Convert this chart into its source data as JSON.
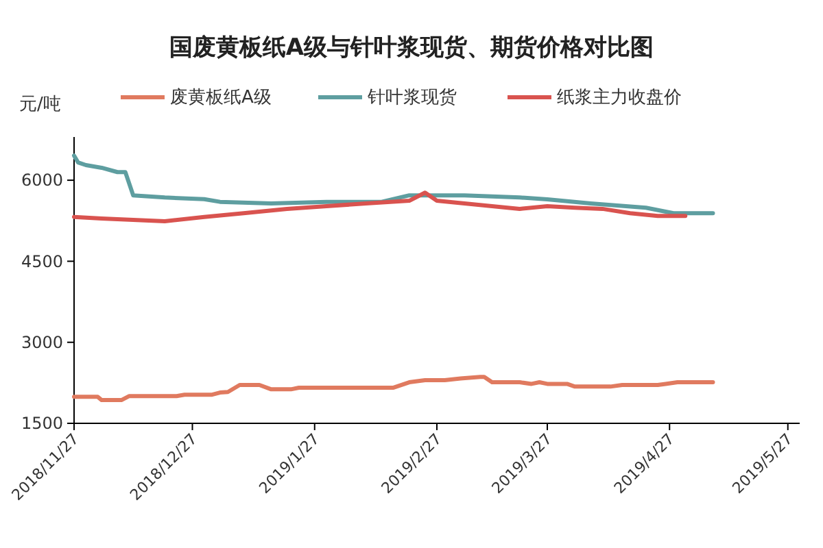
{
  "chart_data": {
    "type": "line",
    "title": "国废黄板纸A级与针叶浆现货、期货价格对比图",
    "ylabel": "元/吨",
    "xlim": [
      "2018-11-27",
      "2019-05-30"
    ],
    "xticks": [
      {
        "value": "2018-11-27",
        "label": "2018/11/27"
      },
      {
        "value": "2018-12-27",
        "label": "2018/12/27"
      },
      {
        "value": "2019-01-27",
        "label": "2019/1/27"
      },
      {
        "value": "2019-02-27",
        "label": "2019/2/27"
      },
      {
        "value": "2019-03-27",
        "label": "2019/3/27"
      },
      {
        "value": "2019-04-27",
        "label": "2019/4/27"
      },
      {
        "value": "2019-05-27",
        "label": "2019/5/27"
      }
    ],
    "ylim": [
      1500,
      6800
    ],
    "yticks": [
      1500,
      3000,
      4500,
      6000
    ],
    "grid": false,
    "legend": "top",
    "marker": "none",
    "line_style": "solid",
    "series": [
      {
        "name": "废黄板纸A级",
        "color": "#e07a5f",
        "x": [
          "2018-11-27",
          "2018-12-03",
          "2018-12-04",
          "2018-12-09",
          "2018-12-11",
          "2018-12-23",
          "2018-12-25",
          "2019-01-01",
          "2019-01-03",
          "2019-01-05",
          "2019-01-08",
          "2019-01-13",
          "2019-01-16",
          "2019-01-21",
          "2019-01-23",
          "2019-02-16",
          "2019-02-20",
          "2019-02-24",
          "2019-03-01",
          "2019-03-05",
          "2019-03-10",
          "2019-03-11",
          "2019-03-13",
          "2019-03-20",
          "2019-03-23",
          "2019-03-25",
          "2019-03-27",
          "2019-04-01",
          "2019-04-03",
          "2019-04-12",
          "2019-04-15",
          "2019-04-24",
          "2019-04-26",
          "2019-04-29",
          "2019-05-08"
        ],
        "values": [
          1990,
          1990,
          1930,
          1930,
          2005,
          2005,
          2030,
          2030,
          2070,
          2080,
          2210,
          2210,
          2130,
          2130,
          2160,
          2160,
          2260,
          2300,
          2300,
          2330,
          2360,
          2360,
          2260,
          2260,
          2230,
          2260,
          2230,
          2230,
          2180,
          2180,
          2210,
          2210,
          2230,
          2260,
          2260
        ]
      },
      {
        "name": "针叶浆现货",
        "color": "#5e9ea0",
        "x": [
          "2018-11-27",
          "2018-11-28",
          "2018-11-30",
          "2018-12-04",
          "2018-12-08",
          "2018-12-10",
          "2018-12-12",
          "2018-12-20",
          "2018-12-30",
          "2019-01-03",
          "2019-01-16",
          "2019-01-30",
          "2019-02-13",
          "2019-02-20",
          "2019-03-06",
          "2019-03-13",
          "2019-03-20",
          "2019-03-27",
          "2019-04-07",
          "2019-04-21",
          "2019-04-28",
          "2019-05-08"
        ],
        "values": [
          6455,
          6330,
          6280,
          6230,
          6150,
          6150,
          5720,
          5680,
          5650,
          5600,
          5570,
          5600,
          5600,
          5720,
          5720,
          5700,
          5680,
          5646,
          5570,
          5490,
          5390,
          5390
        ]
      },
      {
        "name": "纸浆主力收盘价",
        "color": "#d9534f",
        "x": [
          "2018-11-27",
          "2018-12-04",
          "2018-12-20",
          "2018-12-30",
          "2019-01-09",
          "2019-01-20",
          "2019-01-30",
          "2019-02-09",
          "2019-02-20",
          "2019-02-24",
          "2019-02-27",
          "2019-03-06",
          "2019-03-13",
          "2019-03-20",
          "2019-03-27",
          "2019-04-03",
          "2019-04-10",
          "2019-04-17",
          "2019-04-24",
          "2019-05-01"
        ],
        "values": [
          5320,
          5290,
          5240,
          5320,
          5390,
          5470,
          5520,
          5570,
          5620,
          5770,
          5620,
          5570,
          5520,
          5470,
          5520,
          5490,
          5470,
          5390,
          5340,
          5340
        ]
      }
    ]
  }
}
